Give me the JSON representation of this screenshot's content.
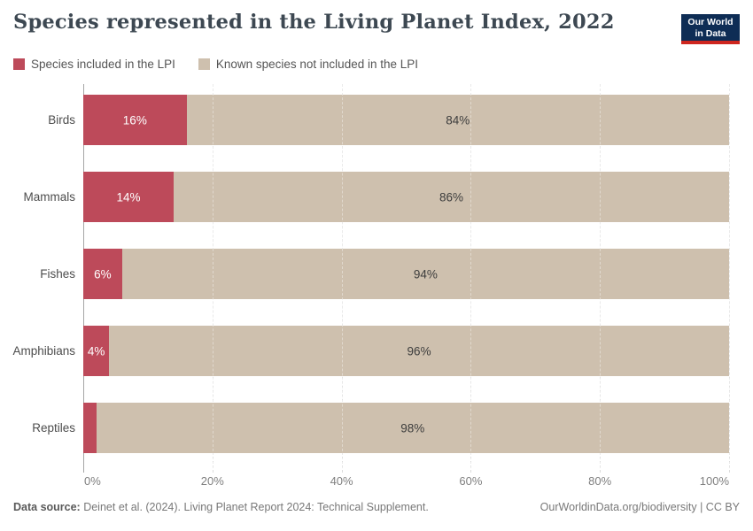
{
  "header": {
    "title": "Species represented in the Living Planet Index, 2022",
    "logo": {
      "line1": "Our World",
      "line2": "in Data",
      "bg_color": "#0e2d55",
      "accent_color": "#ce261f"
    }
  },
  "legend": {
    "items": [
      {
        "label": "Species included in the LPI",
        "color": "#bd4a5a"
      },
      {
        "label": "Known species not included in the LPI",
        "color": "#cec0ae"
      }
    ]
  },
  "chart_data": {
    "type": "bar",
    "orientation": "horizontal",
    "stacked": true,
    "title": "Species represented in the Living Planet Index, 2022",
    "categories": [
      "Birds",
      "Mammals",
      "Fishes",
      "Amphibians",
      "Reptiles"
    ],
    "series": [
      {
        "name": "Species included in the LPI",
        "color": "#bd4a5a",
        "values": [
          16,
          14,
          6,
          4,
          2
        ]
      },
      {
        "name": "Known species not included in the LPI",
        "color": "#cec0ae",
        "values": [
          84,
          86,
          94,
          96,
          98
        ]
      }
    ],
    "bar_labels": [
      [
        "16%",
        "84%"
      ],
      [
        "14%",
        "86%"
      ],
      [
        "6%",
        "94%"
      ],
      [
        "4%",
        "96%"
      ],
      [
        null,
        "98%"
      ]
    ],
    "x_ticks": [
      "0%",
      "20%",
      "40%",
      "60%",
      "80%",
      "100%"
    ],
    "x_tick_values": [
      0,
      20,
      40,
      60,
      80,
      100
    ],
    "xlim": [
      0,
      100
    ],
    "xlabel": "",
    "ylabel": "",
    "grid": "vertical-dashed",
    "legend_position": "top-left"
  },
  "footer": {
    "source_label": "Data source:",
    "source_text": " Deinet et al. (2024). Living Planet Report 2024: Technical Supplement.",
    "right_text": "OurWorldinData.org/biodiversity | CC BY"
  }
}
